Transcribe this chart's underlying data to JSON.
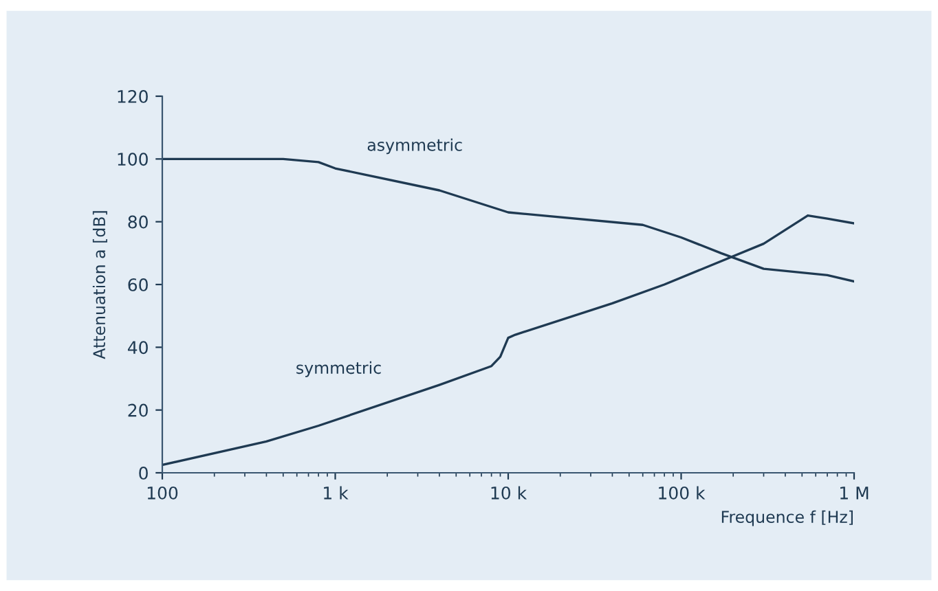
{
  "chart_data": {
    "type": "line",
    "xlabel": "Frequence f [Hz]",
    "ylabel": "Attenuation a [dB]",
    "log": "x",
    "xlim": [
      100,
      1000000
    ],
    "xticks": [
      100,
      {
        "value": 1000,
        "label": "1 k"
      },
      {
        "value": 10000,
        "label": "10 k"
      },
      {
        "value": 100000,
        "label": "100 k"
      },
      {
        "value": 1000000,
        "label": "1 M"
      }
    ],
    "ylim": [
      0,
      120
    ],
    "yticks": [
      0,
      20,
      40,
      60,
      80,
      100,
      120
    ],
    "grid": false,
    "legend": false,
    "marker": "none",
    "line_style": "solid",
    "series": [
      {
        "name": "asymmetric",
        "color": "#1f3a52",
        "x": [
          100,
          500,
          800,
          1000,
          4000,
          10000,
          60000,
          100000,
          170000,
          300000,
          700000,
          1000000
        ],
        "values": [
          100,
          100,
          99,
          97,
          90,
          83,
          79,
          75,
          70,
          65,
          63,
          61
        ]
      },
      {
        "name": "symmetric",
        "color": "#1f3a52",
        "x": [
          100,
          400,
          800,
          4000,
          8000,
          9000,
          10000,
          11000,
          40000,
          80000,
          300000,
          540000,
          700000,
          1000000
        ],
        "values": [
          2.5,
          10,
          15,
          28,
          34,
          37,
          43,
          44,
          54,
          60,
          73,
          82,
          81,
          79.5
        ]
      }
    ]
  }
}
